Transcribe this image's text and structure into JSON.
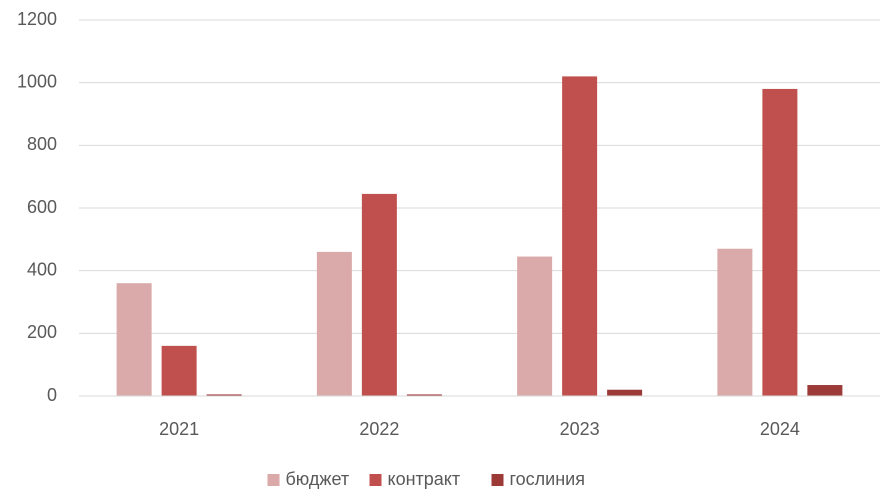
{
  "chart_data": {
    "type": "bar",
    "categories": [
      "2021",
      "2022",
      "2023",
      "2024"
    ],
    "series": [
      {
        "name": "бюджет",
        "color": "#d9aaa9",
        "values": [
          360,
          460,
          445,
          470
        ]
      },
      {
        "name": "контракт",
        "color": "#c0504d",
        "values": [
          160,
          645,
          1020,
          980
        ]
      },
      {
        "name": "гослиния",
        "color": "#9c3a38",
        "values": [
          5,
          5,
          20,
          35
        ]
      }
    ],
    "ylim": [
      0,
      1200
    ],
    "yticks": [
      0,
      200,
      400,
      600,
      800,
      1000,
      1200
    ],
    "grid": true,
    "legend": "bottom"
  }
}
